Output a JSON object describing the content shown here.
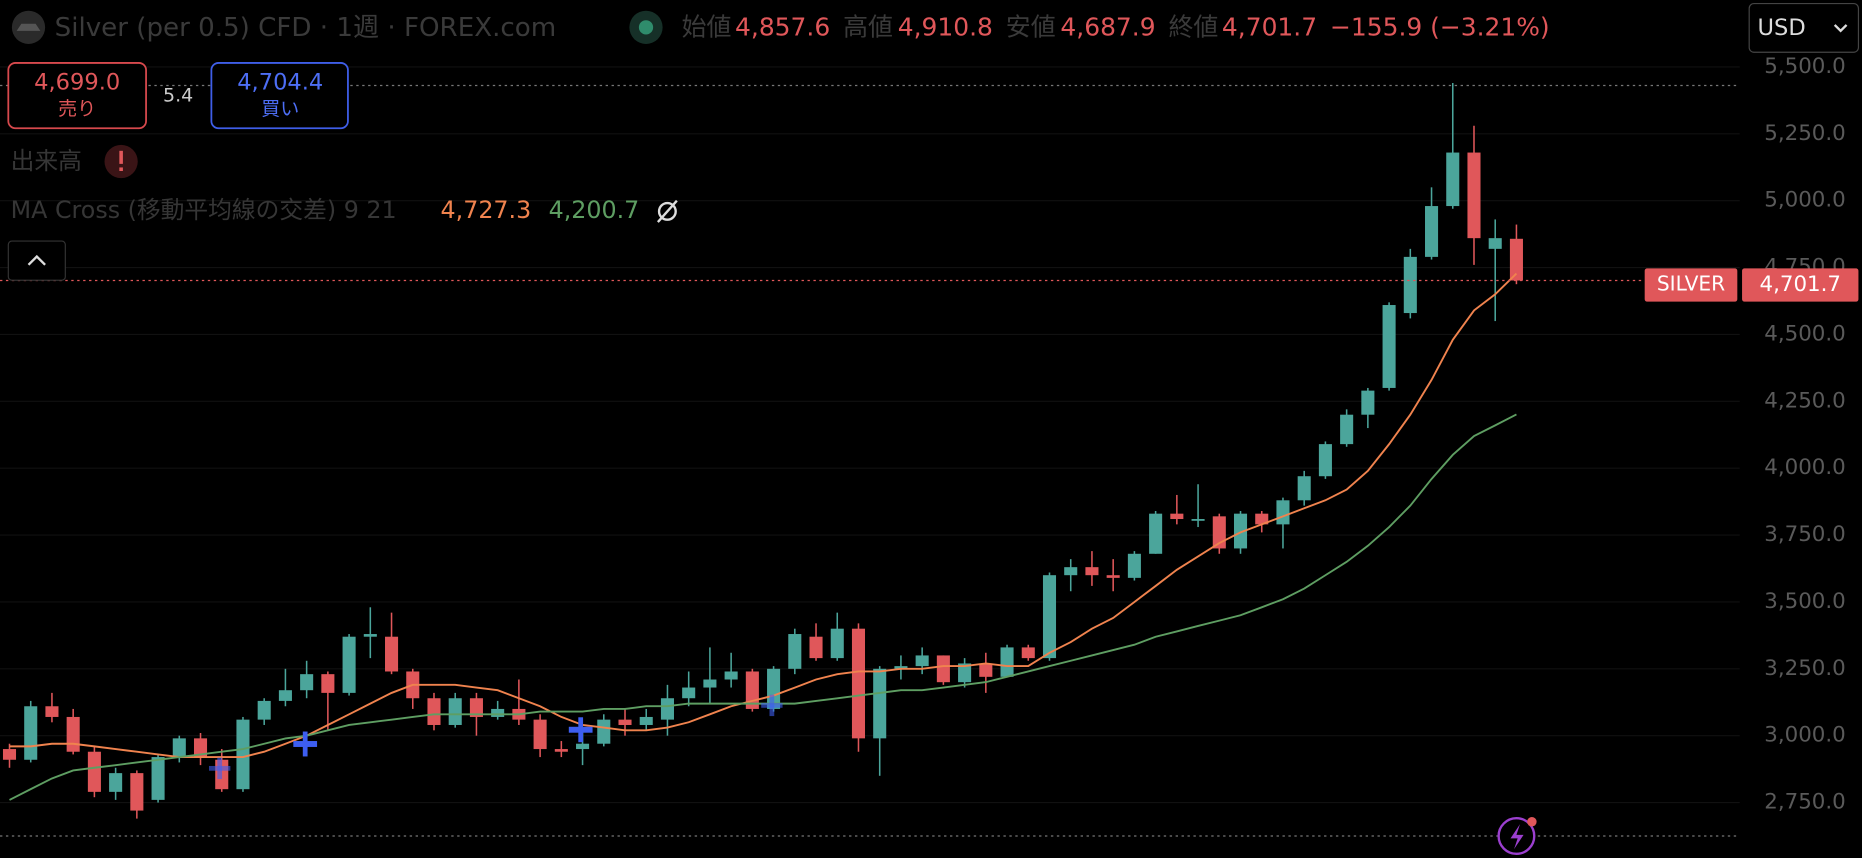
{
  "header": {
    "symbol": "Silver (per 0.5) CFD · 1週 · FOREX.com",
    "open_label": "始値",
    "open": "4,857.6",
    "high_label": "高値",
    "high": "4,910.8",
    "low_label": "安値",
    "low": "4,687.9",
    "close_label": "終値",
    "close": "4,701.7",
    "change": "−155.9 (−3.21%)",
    "currency": "USD"
  },
  "trade": {
    "sell_price": "4,699.0",
    "sell_label": "売り",
    "spread": "5.4",
    "buy_price": "4,704.4",
    "buy_label": "買い"
  },
  "indicators": {
    "volume_label": "出来高",
    "ma_label": "MA Cross (移動平均線の交差) 9 21",
    "ma_fast": "4,727.3",
    "ma_slow": "4,200.7"
  },
  "price_tag": {
    "name": "SILVER",
    "value": "4,701.7"
  },
  "chart_data": {
    "type": "candlestick",
    "up_color": "#4ba59b",
    "down_color": "#e0575a",
    "open": [
      2950,
      2910,
      3110,
      3070,
      2940,
      2790,
      2860,
      2760,
      2920,
      2990,
      2910,
      2800,
      3060,
      3130,
      3170,
      3230,
      3160,
      3370,
      3370,
      3240,
      3140,
      3040,
      3140,
      3070,
      3100,
      3060,
      2950,
      2950,
      2970,
      3060,
      3040,
      3060,
      3140,
      3180,
      3210,
      3240,
      3100,
      3250,
      3370,
      3290,
      3400,
      2990,
      3250,
      3260,
      3300,
      3200,
      3270,
      3220,
      3330,
      3290,
      3600,
      3630,
      3600,
      3590,
      3680,
      3830,
      3810,
      3820,
      3700,
      3830,
      3790,
      3880,
      3970,
      4090,
      4200,
      4300,
      4580,
      4790,
      4980,
      5180,
      4820,
      4857.6
    ],
    "close": [
      2910,
      3110,
      3070,
      2940,
      2790,
      2860,
      2720,
      2920,
      2990,
      2920,
      2800,
      3060,
      3130,
      3170,
      3230,
      3160,
      3370,
      3380,
      3240,
      3140,
      3040,
      3140,
      3070,
      3100,
      3060,
      2950,
      2940,
      2970,
      3060,
      3040,
      3070,
      3140,
      3180,
      3210,
      3240,
      3100,
      3250,
      3380,
      3290,
      3400,
      2990,
      3250,
      3260,
      3300,
      3200,
      3270,
      3220,
      3330,
      3290,
      3600,
      3630,
      3600,
      3590,
      3680,
      3830,
      3810,
      3810,
      3700,
      3830,
      3790,
      3880,
      3970,
      4090,
      4200,
      4290,
      4610,
      4790,
      4980,
      5180,
      4860,
      4860,
      4701.7
    ],
    "high": [
      2970,
      3130,
      3160,
      3100,
      2960,
      2880,
      2870,
      2930,
      3000,
      3010,
      2950,
      3070,
      3140,
      3250,
      3280,
      3240,
      3380,
      3480,
      3460,
      3250,
      3160,
      3160,
      3160,
      3130,
      3210,
      3080,
      2980,
      3020,
      3080,
      3100,
      3100,
      3190,
      3240,
      3330,
      3310,
      3250,
      3260,
      3400,
      3420,
      3460,
      3420,
      3260,
      3300,
      3330,
      3300,
      3290,
      3310,
      3340,
      3340,
      3610,
      3660,
      3690,
      3660,
      3690,
      3840,
      3900,
      3940,
      3830,
      3840,
      3840,
      3890,
      3990,
      4100,
      4220,
      4300,
      4620,
      4820,
      5050,
      5440,
      5280,
      4930,
      4910.8
    ],
    "low": [
      2880,
      2900,
      3050,
      2930,
      2770,
      2760,
      2690,
      2750,
      2900,
      2890,
      2790,
      2790,
      3040,
      3110,
      3140,
      3020,
      3150,
      3290,
      3230,
      3100,
      3020,
      3030,
      3000,
      3060,
      3040,
      2920,
      2920,
      2890,
      2960,
      3000,
      3020,
      3000,
      3110,
      3120,
      3180,
      3090,
      3090,
      3230,
      3280,
      3280,
      2940,
      2850,
      3210,
      3230,
      3190,
      3180,
      3160,
      3220,
      3280,
      3280,
      3540,
      3560,
      3540,
      3580,
      3680,
      3790,
      3780,
      3680,
      3680,
      3760,
      3700,
      3860,
      3960,
      4080,
      4150,
      4290,
      4560,
      4780,
      4970,
      4760,
      4550,
      4687.9
    ],
    "series": [
      {
        "name": "MA 9",
        "color": "#f0834e",
        "values": [
          2960,
          2960,
          2970,
          2970,
          2960,
          2950,
          2940,
          2930,
          2920,
          2920,
          2920,
          2920,
          2940,
          2970,
          3000,
          3040,
          3080,
          3120,
          3160,
          3190,
          3190,
          3190,
          3180,
          3170,
          3140,
          3110,
          3070,
          3040,
          3030,
          3020,
          3020,
          3030,
          3050,
          3080,
          3110,
          3130,
          3150,
          3180,
          3210,
          3230,
          3240,
          3240,
          3250,
          3250,
          3260,
          3260,
          3270,
          3260,
          3260,
          3310,
          3350,
          3400,
          3440,
          3500,
          3560,
          3620,
          3670,
          3720,
          3760,
          3790,
          3820,
          3850,
          3880,
          3920,
          3990,
          4090,
          4200,
          4330,
          4480,
          4590,
          4650,
          4727.3
        ]
      },
      {
        "name": "MA 21",
        "color": "#5e9e62",
        "values": [
          2760,
          2800,
          2840,
          2870,
          2880,
          2890,
          2900,
          2910,
          2920,
          2930,
          2940,
          2950,
          2970,
          2990,
          3000,
          3020,
          3040,
          3050,
          3060,
          3070,
          3080,
          3080,
          3080,
          3080,
          3080,
          3090,
          3090,
          3090,
          3100,
          3100,
          3110,
          3110,
          3120,
          3120,
          3120,
          3120,
          3120,
          3120,
          3130,
          3140,
          3150,
          3160,
          3170,
          3170,
          3180,
          3190,
          3200,
          3220,
          3240,
          3260,
          3280,
          3300,
          3320,
          3340,
          3370,
          3390,
          3410,
          3430,
          3450,
          3480,
          3510,
          3550,
          3600,
          3650,
          3710,
          3780,
          3860,
          3960,
          4050,
          4120,
          4160,
          4200.7
        ]
      }
    ],
    "ylim": [
      2687,
      5555
    ],
    "yticks": [
      {
        "value": 2750,
        "label": "2,750.0"
      },
      {
        "value": 3000,
        "label": "3,000.0"
      },
      {
        "value": 3250,
        "label": "3,250.0"
      },
      {
        "value": 3500,
        "label": "3,500.0"
      },
      {
        "value": 3750,
        "label": "3,750.0"
      },
      {
        "value": 4000,
        "label": "4,000.0"
      },
      {
        "value": 4250,
        "label": "4,250.0"
      },
      {
        "value": 4500,
        "label": "4,500.0"
      },
      {
        "value": 4750,
        "label": "4,750.0"
      },
      {
        "value": 5000,
        "label": "5,000.0"
      },
      {
        "value": 5250,
        "label": "5,250.0"
      },
      {
        "value": 5500,
        "label": "5,500.0"
      }
    ],
    "grid": true
  }
}
